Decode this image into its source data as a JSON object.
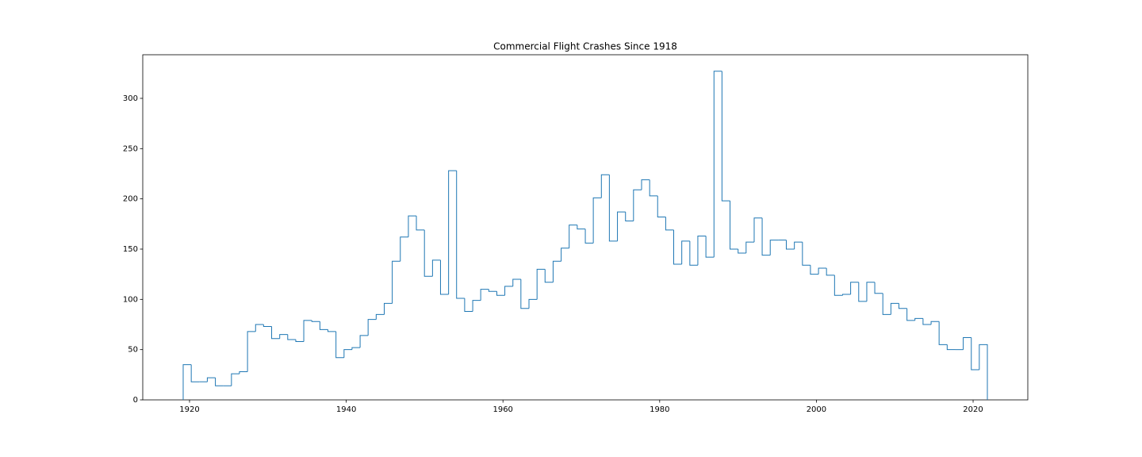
{
  "chart_data": {
    "type": "histogram",
    "histtype": "step",
    "title": "Commercial Flight Crashes Since 1918",
    "color": "#1f77b4",
    "bins": [
      1919.19,
      1920.22,
      1921.24,
      1922.27,
      1923.3,
      1924.32,
      1925.35,
      1926.37,
      1927.4,
      1928.43,
      1929.45,
      1930.48,
      1931.51,
      1932.53,
      1933.56,
      1934.58,
      1935.61,
      1936.64,
      1937.66,
      1938.69,
      1939.72,
      1940.74,
      1941.77,
      1942.79,
      1943.82,
      1944.85,
      1945.87,
      1946.9,
      1947.93,
      1948.95,
      1949.98,
      1951.01,
      1952.03,
      1953.06,
      1954.08,
      1955.11,
      1956.14,
      1957.16,
      1958.19,
      1959.22,
      1960.24,
      1961.27,
      1962.29,
      1963.32,
      1964.35,
      1965.37,
      1966.4,
      1967.43,
      1968.45,
      1969.48,
      1970.51,
      1971.53,
      1972.56,
      1973.58,
      1974.61,
      1975.64,
      1976.66,
      1977.69,
      1978.72,
      1979.74,
      1980.77,
      1981.79,
      1982.82,
      1983.85,
      1984.87,
      1985.9,
      1986.93,
      1987.95,
      1988.98,
      1990.01,
      1991.03,
      1992.06,
      1993.08,
      1994.11,
      1995.14,
      1996.16,
      1997.19,
      1998.22,
      1999.24,
      2000.27,
      2001.29,
      2002.32,
      2003.35,
      2004.37,
      2005.4,
      2006.43,
      2007.45,
      2008.48,
      2009.51,
      2010.53,
      2011.56,
      2012.58,
      2013.61,
      2014.64,
      2015.66,
      2016.69,
      2017.72,
      2018.74,
      2019.77,
      2020.79,
      2021.82
    ],
    "values": [
      35,
      18,
      18,
      22,
      14,
      14,
      26,
      28,
      68,
      75,
      73,
      61,
      65,
      60,
      58,
      79,
      78,
      70,
      68,
      42,
      50,
      52,
      64,
      80,
      85,
      96,
      138,
      162,
      183,
      169,
      123,
      139,
      105,
      228,
      101,
      88,
      99,
      110,
      108,
      104,
      113,
      120,
      91,
      100,
      130,
      117,
      138,
      151,
      174,
      170,
      156,
      201,
      224,
      158,
      187,
      178,
      209,
      219,
      203,
      182,
      169,
      135,
      158,
      134,
      163,
      142,
      327,
      198,
      150,
      146,
      157,
      181,
      144,
      159,
      159,
      150,
      157,
      134,
      125,
      131,
      124,
      104,
      105,
      117,
      98,
      117,
      106,
      85,
      96,
      91,
      79,
      81,
      75,
      78,
      55,
      50,
      50,
      62,
      30,
      55
    ],
    "xlim": [
      1914.03,
      2026.98
    ],
    "xticks": [
      1920,
      1940,
      1960,
      1980,
      2000,
      2020
    ],
    "ylim": [
      0,
      343.4
    ],
    "yticks": [
      0,
      50,
      100,
      150,
      200,
      250,
      300
    ]
  }
}
